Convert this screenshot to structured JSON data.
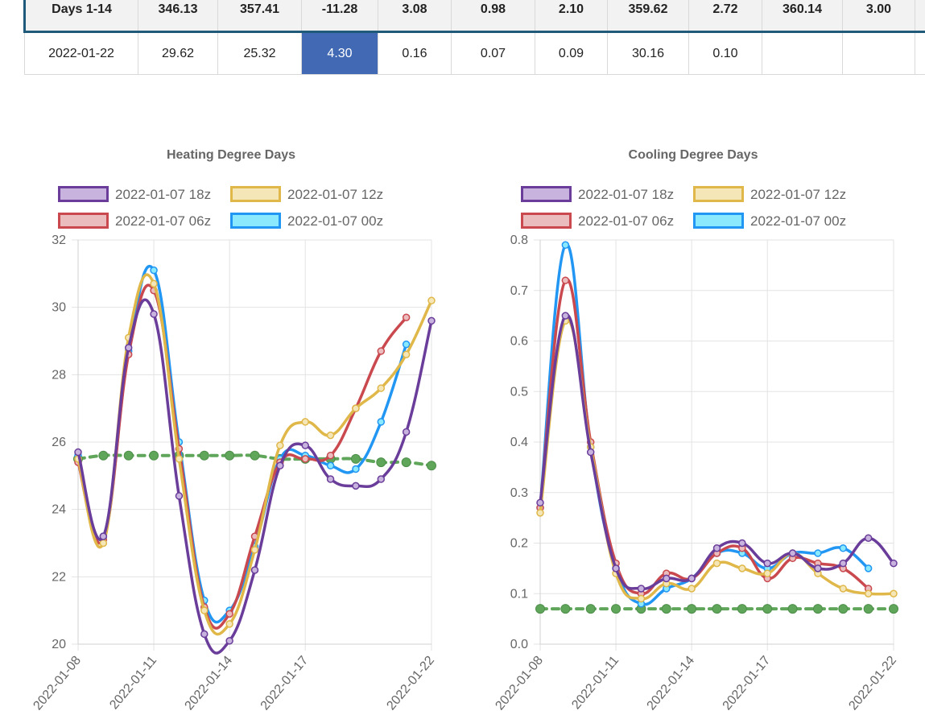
{
  "table": {
    "columns_count": 11,
    "total_row": [
      "Days 1-14",
      "346.13",
      "357.41",
      "-11.28",
      "3.08",
      "0.98",
      "2.10",
      "359.62",
      "2.72",
      "360.14",
      "3.00"
    ],
    "date_row": [
      "2022-01-22",
      "29.62",
      "25.32",
      "4.30",
      "0.16",
      "0.07",
      "0.09",
      "30.16",
      "0.10",
      "",
      ""
    ],
    "highlight_cell": {
      "row": "date_row",
      "col": 3,
      "color": "#4169b4"
    }
  },
  "legend": [
    "2022-01-07 18z",
    "2022-01-07 12z",
    "2022-01-07 06z",
    "2022-01-07 00z"
  ],
  "chart_data": [
    {
      "type": "line",
      "title": "Heating Degree Days",
      "x": [
        "2022-01-08",
        "2022-01-09",
        "2022-01-10",
        "2022-01-11",
        "2022-01-12",
        "2022-01-13",
        "2022-01-14",
        "2022-01-15",
        "2022-01-16",
        "2022-01-17",
        "2022-01-18",
        "2022-01-19",
        "2022-01-20",
        "2022-01-21",
        "2022-01-22"
      ],
      "xticks": [
        "2022-01-08",
        "2022-01-11",
        "2022-01-14",
        "2022-01-17",
        "2022-01-22"
      ],
      "ylim": [
        20,
        32
      ],
      "yticks": [
        20,
        22,
        24,
        26,
        28,
        30,
        32
      ],
      "grid": true,
      "legend_position": "top",
      "series": [
        {
          "name": "2022-01-07 18z",
          "color": "#6a3d9a",
          "fill": "#c7b3dd",
          "dashed": false,
          "values": [
            25.7,
            23.2,
            28.8,
            29.8,
            24.4,
            20.3,
            20.1,
            22.2,
            25.3,
            25.9,
            24.9,
            24.7,
            24.9,
            26.3,
            29.6
          ]
        },
        {
          "name": "2022-01-07 12z",
          "color": "#e0b84a",
          "fill": "#f5e6b8",
          "dashed": false,
          "values": [
            25.5,
            23.0,
            29.1,
            30.7,
            25.5,
            21.0,
            20.6,
            22.8,
            25.9,
            26.6,
            26.2,
            27.0,
            27.6,
            28.6,
            30.2
          ]
        },
        {
          "name": "2022-01-07 06z",
          "color": "#c9494f",
          "fill": "#ebbcbd",
          "dashed": false,
          "values": [
            25.4,
            23.1,
            28.6,
            30.5,
            25.8,
            21.1,
            20.9,
            23.2,
            25.4,
            25.5,
            25.6,
            27.0,
            28.7,
            29.7,
            null
          ]
        },
        {
          "name": "2022-01-07 00z",
          "color": "#2196f3",
          "fill": "#8be9fd",
          "dashed": false,
          "values": [
            25.6,
            23.2,
            28.7,
            31.1,
            26.0,
            21.3,
            21.0,
            22.9,
            25.5,
            25.6,
            25.3,
            25.2,
            26.6,
            28.9,
            null
          ]
        },
        {
          "name": "",
          "color": "#5fa55a",
          "fill": "#5fa55a",
          "dashed": true,
          "values": [
            25.5,
            25.6,
            25.6,
            25.6,
            25.6,
            25.6,
            25.6,
            25.6,
            25.5,
            25.5,
            25.5,
            25.5,
            25.4,
            25.4,
            25.3
          ]
        }
      ]
    },
    {
      "type": "line",
      "title": "Cooling Degree Days",
      "x": [
        "2022-01-08",
        "2022-01-09",
        "2022-01-10",
        "2022-01-11",
        "2022-01-12",
        "2022-01-13",
        "2022-01-14",
        "2022-01-15",
        "2022-01-16",
        "2022-01-17",
        "2022-01-18",
        "2022-01-19",
        "2022-01-20",
        "2022-01-21",
        "2022-01-22"
      ],
      "xticks": [
        "2022-01-08",
        "2022-01-11",
        "2022-01-14",
        "2022-01-17",
        "2022-01-22"
      ],
      "ylim": [
        0,
        0.8
      ],
      "yticks": [
        0,
        0.1,
        0.2,
        0.3,
        0.4,
        0.5,
        0.6,
        0.7,
        0.8
      ],
      "grid": true,
      "legend_position": "top",
      "series": [
        {
          "name": "2022-01-07 18z",
          "color": "#6a3d9a",
          "fill": "#c7b3dd",
          "dashed": false,
          "values": [
            0.28,
            0.65,
            0.38,
            0.15,
            0.11,
            0.13,
            0.13,
            0.19,
            0.2,
            0.16,
            0.18,
            0.15,
            0.16,
            0.21,
            0.16
          ]
        },
        {
          "name": "2022-01-07 12z",
          "color": "#e0b84a",
          "fill": "#f5e6b8",
          "dashed": false,
          "values": [
            0.26,
            0.64,
            0.39,
            0.14,
            0.09,
            0.12,
            0.11,
            0.16,
            0.15,
            0.14,
            0.18,
            0.14,
            0.11,
            0.1,
            0.1
          ]
        },
        {
          "name": "2022-01-07 06z",
          "color": "#c9494f",
          "fill": "#ebbcbd",
          "dashed": false,
          "values": [
            0.27,
            0.72,
            0.4,
            0.16,
            0.1,
            0.14,
            0.13,
            0.18,
            0.19,
            0.13,
            0.17,
            0.16,
            0.15,
            0.11,
            null
          ]
        },
        {
          "name": "2022-01-07 00z",
          "color": "#2196f3",
          "fill": "#8be9fd",
          "dashed": false,
          "values": [
            0.27,
            0.79,
            0.39,
            0.15,
            0.08,
            0.11,
            0.13,
            0.18,
            0.18,
            0.15,
            0.18,
            0.18,
            0.19,
            0.15,
            null
          ]
        },
        {
          "name": "",
          "color": "#5fa55a",
          "fill": "#5fa55a",
          "dashed": true,
          "values": [
            0.07,
            0.07,
            0.07,
            0.07,
            0.07,
            0.07,
            0.07,
            0.07,
            0.07,
            0.07,
            0.07,
            0.07,
            0.07,
            0.07,
            0.07
          ]
        }
      ]
    }
  ]
}
